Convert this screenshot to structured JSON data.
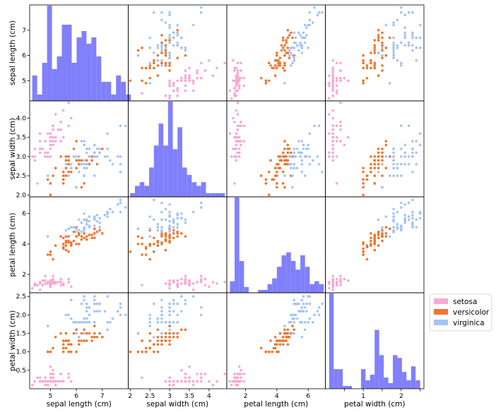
{
  "chart_data": {
    "type": "scatter-matrix",
    "title": "",
    "features": [
      {
        "key": "sl",
        "label": "sepal length (cm)",
        "range": [
          4.2,
          8.0
        ],
        "ticks": [
          5,
          6,
          7
        ],
        "bins": [
          [
            4.3,
            4.49,
            4
          ],
          [
            4.49,
            4.68,
            1
          ],
          [
            4.68,
            4.87,
            6
          ],
          [
            4.87,
            5.06,
            15
          ],
          [
            5.06,
            5.25,
            5
          ],
          [
            5.25,
            5.44,
            7
          ],
          [
            5.44,
            5.63,
            12
          ],
          [
            5.63,
            5.82,
            12
          ],
          [
            5.82,
            6.01,
            6
          ],
          [
            6.01,
            6.2,
            10
          ],
          [
            6.2,
            6.39,
            11
          ],
          [
            6.39,
            6.58,
            9
          ],
          [
            6.58,
            6.77,
            10
          ],
          [
            6.77,
            6.96,
            7
          ],
          [
            6.96,
            7.15,
            3
          ],
          [
            7.15,
            7.34,
            3
          ],
          [
            7.34,
            7.53,
            1
          ],
          [
            7.53,
            7.72,
            4
          ],
          [
            7.72,
            7.91,
            3
          ],
          [
            7.91,
            8.1,
            1
          ]
        ]
      },
      {
        "key": "sw",
        "label": "sepal width (cm)",
        "range": [
          1.95,
          4.45
        ],
        "ticks": [
          2.0,
          2.5,
          3.0,
          3.5,
          4.0
        ],
        "bins": [
          [
            2.0,
            2.12,
            1
          ],
          [
            2.12,
            2.24,
            3
          ],
          [
            2.24,
            2.36,
            4
          ],
          [
            2.36,
            2.48,
            3
          ],
          [
            2.48,
            2.6,
            8
          ],
          [
            2.6,
            2.72,
            14
          ],
          [
            2.72,
            2.84,
            20
          ],
          [
            2.84,
            2.96,
            14
          ],
          [
            2.96,
            3.08,
            26
          ],
          [
            3.08,
            3.2,
            13
          ],
          [
            3.2,
            3.32,
            19
          ],
          [
            3.32,
            3.44,
            8
          ],
          [
            3.44,
            3.56,
            6
          ],
          [
            3.56,
            3.68,
            4
          ],
          [
            3.68,
            3.8,
            3
          ],
          [
            3.8,
            3.92,
            4
          ],
          [
            3.92,
            4.04,
            1
          ],
          [
            4.04,
            4.16,
            1
          ],
          [
            4.16,
            4.28,
            1
          ],
          [
            4.28,
            4.4,
            1
          ]
        ]
      },
      {
        "key": "pl",
        "label": "petal length (cm)",
        "range": [
          0.8,
          7.1
        ],
        "ticks": [
          2,
          4,
          6
        ],
        "bins": [
          [
            1.0,
            1.3,
            4
          ],
          [
            1.3,
            1.6,
            33
          ],
          [
            1.6,
            1.9,
            11
          ],
          [
            1.9,
            2.2,
            2
          ],
          [
            2.2,
            2.5,
            0
          ],
          [
            2.5,
            2.8,
            0
          ],
          [
            2.8,
            3.1,
            1
          ],
          [
            3.1,
            3.4,
            1
          ],
          [
            3.4,
            3.7,
            3
          ],
          [
            3.7,
            4.0,
            5
          ],
          [
            4.0,
            4.3,
            9
          ],
          [
            4.3,
            4.6,
            13
          ],
          [
            4.6,
            4.9,
            14
          ],
          [
            4.9,
            5.2,
            11
          ],
          [
            5.2,
            5.5,
            8
          ],
          [
            5.5,
            5.8,
            13
          ],
          [
            5.8,
            6.1,
            9
          ],
          [
            6.1,
            6.4,
            3
          ],
          [
            6.4,
            6.7,
            4
          ],
          [
            6.7,
            7.0,
            3
          ]
        ]
      },
      {
        "key": "pw",
        "label": "petal width (cm)",
        "range": [
          0.0,
          2.6
        ],
        "ticks": [
          0.5,
          1.0,
          1.5,
          2.0,
          2.5
        ],
        "labeled_ticks": [
          1,
          2
        ],
        "bins": [
          [
            0.1,
            0.22,
            34
          ],
          [
            0.22,
            0.34,
            7
          ],
          [
            0.34,
            0.46,
            7
          ],
          [
            0.46,
            0.58,
            1
          ],
          [
            0.58,
            0.7,
            1
          ],
          [
            0.7,
            0.82,
            0
          ],
          [
            0.82,
            0.94,
            0
          ],
          [
            0.94,
            1.06,
            7
          ],
          [
            1.06,
            1.18,
            3
          ],
          [
            1.18,
            1.3,
            5
          ],
          [
            1.3,
            1.42,
            21
          ],
          [
            1.42,
            1.54,
            12
          ],
          [
            1.54,
            1.66,
            4
          ],
          [
            1.66,
            1.78,
            2
          ],
          [
            1.78,
            1.9,
            12
          ],
          [
            1.9,
            2.02,
            11
          ],
          [
            2.02,
            2.14,
            6
          ],
          [
            2.14,
            2.26,
            3
          ],
          [
            2.26,
            2.38,
            8
          ],
          [
            2.38,
            2.5,
            3
          ]
        ]
      }
    ],
    "legend": {
      "placement": "right",
      "entries": [
        {
          "name": "setosa",
          "color": "#f7a8d3"
        },
        {
          "name": "versicolor",
          "color": "#ee7630"
        },
        {
          "name": "virginica",
          "color": "#a5c4f3"
        }
      ]
    },
    "hist_color": "#8080fc",
    "grid": false,
    "points": {
      "setosa": [
        [
          5.1,
          3.5,
          1.4,
          0.2
        ],
        [
          4.9,
          3.0,
          1.4,
          0.2
        ],
        [
          4.7,
          3.2,
          1.3,
          0.2
        ],
        [
          4.6,
          3.1,
          1.5,
          0.2
        ],
        [
          5.0,
          3.6,
          1.4,
          0.2
        ],
        [
          5.4,
          3.9,
          1.7,
          0.4
        ],
        [
          4.6,
          3.4,
          1.4,
          0.3
        ],
        [
          5.0,
          3.4,
          1.5,
          0.2
        ],
        [
          4.4,
          2.9,
          1.4,
          0.2
        ],
        [
          4.9,
          3.1,
          1.5,
          0.1
        ],
        [
          5.4,
          3.7,
          1.5,
          0.2
        ],
        [
          4.8,
          3.4,
          1.6,
          0.2
        ],
        [
          4.8,
          3.0,
          1.4,
          0.1
        ],
        [
          4.3,
          3.0,
          1.1,
          0.1
        ],
        [
          5.8,
          4.0,
          1.2,
          0.2
        ],
        [
          5.7,
          4.4,
          1.5,
          0.4
        ],
        [
          5.4,
          3.9,
          1.3,
          0.4
        ],
        [
          5.1,
          3.5,
          1.4,
          0.3
        ],
        [
          5.7,
          3.8,
          1.7,
          0.3
        ],
        [
          5.1,
          3.8,
          1.5,
          0.3
        ],
        [
          5.4,
          3.4,
          1.7,
          0.2
        ],
        [
          5.1,
          3.7,
          1.5,
          0.4
        ],
        [
          4.6,
          3.6,
          1.0,
          0.2
        ],
        [
          5.1,
          3.3,
          1.7,
          0.5
        ],
        [
          4.8,
          3.4,
          1.9,
          0.2
        ],
        [
          5.0,
          3.0,
          1.6,
          0.2
        ],
        [
          5.0,
          3.4,
          1.6,
          0.4
        ],
        [
          5.2,
          3.5,
          1.5,
          0.2
        ],
        [
          5.2,
          3.4,
          1.4,
          0.2
        ],
        [
          4.7,
          3.2,
          1.6,
          0.2
        ],
        [
          4.8,
          3.1,
          1.6,
          0.2
        ],
        [
          5.4,
          3.4,
          1.5,
          0.4
        ],
        [
          5.2,
          4.1,
          1.5,
          0.1
        ],
        [
          5.5,
          4.2,
          1.4,
          0.2
        ],
        [
          4.9,
          3.1,
          1.5,
          0.2
        ],
        [
          5.0,
          3.2,
          1.2,
          0.2
        ],
        [
          5.5,
          3.5,
          1.3,
          0.2
        ],
        [
          4.9,
          3.6,
          1.4,
          0.1
        ],
        [
          4.4,
          3.0,
          1.3,
          0.2
        ],
        [
          5.1,
          3.4,
          1.5,
          0.2
        ],
        [
          5.0,
          3.5,
          1.3,
          0.3
        ],
        [
          4.5,
          2.3,
          1.3,
          0.3
        ],
        [
          4.4,
          3.2,
          1.3,
          0.2
        ],
        [
          5.0,
          3.5,
          1.6,
          0.6
        ],
        [
          5.1,
          3.8,
          1.9,
          0.4
        ],
        [
          4.8,
          3.0,
          1.4,
          0.3
        ],
        [
          5.1,
          3.8,
          1.6,
          0.2
        ],
        [
          4.6,
          3.2,
          1.4,
          0.2
        ],
        [
          5.3,
          3.7,
          1.5,
          0.2
        ],
        [
          5.0,
          3.3,
          1.4,
          0.2
        ]
      ],
      "versicolor": [
        [
          7.0,
          3.2,
          4.7,
          1.4
        ],
        [
          6.4,
          3.2,
          4.5,
          1.5
        ],
        [
          6.9,
          3.1,
          4.9,
          1.5
        ],
        [
          5.5,
          2.3,
          4.0,
          1.3
        ],
        [
          6.5,
          2.8,
          4.6,
          1.5
        ],
        [
          5.7,
          2.8,
          4.5,
          1.3
        ],
        [
          6.3,
          3.3,
          4.7,
          1.6
        ],
        [
          4.9,
          2.4,
          3.3,
          1.0
        ],
        [
          6.6,
          2.9,
          4.6,
          1.3
        ],
        [
          5.2,
          2.7,
          3.9,
          1.4
        ],
        [
          5.0,
          2.0,
          3.5,
          1.0
        ],
        [
          5.9,
          3.0,
          4.2,
          1.5
        ],
        [
          6.0,
          2.2,
          4.0,
          1.0
        ],
        [
          6.1,
          2.9,
          4.7,
          1.4
        ],
        [
          5.6,
          2.9,
          3.6,
          1.3
        ],
        [
          6.7,
          3.1,
          4.4,
          1.4
        ],
        [
          5.6,
          3.0,
          4.5,
          1.5
        ],
        [
          5.8,
          2.7,
          4.1,
          1.0
        ],
        [
          6.2,
          2.2,
          4.5,
          1.5
        ],
        [
          5.6,
          2.5,
          3.9,
          1.1
        ],
        [
          5.9,
          3.2,
          4.8,
          1.8
        ],
        [
          6.1,
          2.8,
          4.0,
          1.3
        ],
        [
          6.3,
          2.5,
          4.9,
          1.5
        ],
        [
          6.1,
          2.8,
          4.7,
          1.2
        ],
        [
          6.4,
          2.9,
          4.3,
          1.3
        ],
        [
          6.6,
          3.0,
          4.4,
          1.4
        ],
        [
          6.8,
          2.8,
          4.8,
          1.4
        ],
        [
          6.7,
          3.0,
          5.0,
          1.7
        ],
        [
          6.0,
          2.9,
          4.5,
          1.5
        ],
        [
          5.7,
          2.6,
          3.5,
          1.0
        ],
        [
          5.5,
          2.4,
          3.8,
          1.1
        ],
        [
          5.5,
          2.4,
          3.7,
          1.0
        ],
        [
          5.8,
          2.7,
          3.9,
          1.2
        ],
        [
          6.0,
          2.7,
          5.1,
          1.6
        ],
        [
          5.4,
          3.0,
          4.5,
          1.5
        ],
        [
          6.0,
          3.4,
          4.5,
          1.6
        ],
        [
          6.7,
          3.1,
          4.7,
          1.5
        ],
        [
          6.3,
          2.3,
          4.4,
          1.3
        ],
        [
          5.6,
          3.0,
          4.1,
          1.3
        ],
        [
          5.5,
          2.5,
          4.0,
          1.3
        ],
        [
          5.5,
          2.6,
          4.4,
          1.2
        ],
        [
          6.1,
          3.0,
          4.6,
          1.4
        ],
        [
          5.8,
          2.6,
          4.0,
          1.2
        ],
        [
          5.0,
          2.3,
          3.3,
          1.0
        ],
        [
          5.6,
          2.7,
          4.2,
          1.3
        ],
        [
          5.7,
          3.0,
          4.2,
          1.2
        ],
        [
          5.7,
          2.9,
          4.2,
          1.3
        ],
        [
          6.2,
          2.9,
          4.3,
          1.3
        ],
        [
          5.1,
          2.5,
          3.0,
          1.1
        ],
        [
          5.7,
          2.8,
          4.1,
          1.3
        ]
      ],
      "virginica": [
        [
          6.3,
          3.3,
          6.0,
          2.5
        ],
        [
          5.8,
          2.7,
          5.1,
          1.9
        ],
        [
          7.1,
          3.0,
          5.9,
          2.1
        ],
        [
          6.3,
          2.9,
          5.6,
          1.8
        ],
        [
          6.5,
          3.0,
          5.8,
          2.2
        ],
        [
          7.6,
          3.0,
          6.6,
          2.1
        ],
        [
          4.9,
          2.5,
          4.5,
          1.7
        ],
        [
          7.3,
          2.9,
          6.3,
          1.8
        ],
        [
          6.7,
          2.5,
          5.8,
          1.8
        ],
        [
          7.2,
          3.6,
          6.1,
          2.5
        ],
        [
          6.5,
          3.2,
          5.1,
          2.0
        ],
        [
          6.4,
          2.7,
          5.3,
          1.9
        ],
        [
          6.8,
          3.0,
          5.5,
          2.1
        ],
        [
          5.7,
          2.5,
          5.0,
          2.0
        ],
        [
          5.8,
          2.8,
          5.1,
          2.4
        ],
        [
          6.4,
          3.2,
          5.3,
          2.3
        ],
        [
          6.5,
          3.0,
          5.5,
          1.8
        ],
        [
          7.7,
          3.8,
          6.7,
          2.2
        ],
        [
          7.7,
          2.6,
          6.9,
          2.3
        ],
        [
          6.0,
          2.2,
          5.0,
          1.5
        ],
        [
          6.9,
          3.2,
          5.7,
          2.3
        ],
        [
          5.6,
          2.8,
          4.9,
          2.0
        ],
        [
          7.7,
          2.8,
          6.7,
          2.0
        ],
        [
          6.3,
          2.7,
          4.9,
          1.8
        ],
        [
          6.7,
          3.3,
          5.7,
          2.1
        ],
        [
          7.2,
          3.2,
          6.0,
          1.8
        ],
        [
          6.2,
          2.8,
          4.8,
          1.8
        ],
        [
          6.1,
          3.0,
          4.9,
          1.8
        ],
        [
          6.4,
          2.8,
          5.6,
          2.1
        ],
        [
          7.2,
          3.0,
          5.8,
          1.6
        ],
        [
          7.4,
          2.8,
          6.1,
          1.9
        ],
        [
          7.9,
          3.8,
          6.4,
          2.0
        ],
        [
          6.4,
          2.8,
          5.6,
          2.2
        ],
        [
          6.3,
          2.8,
          5.1,
          1.5
        ],
        [
          6.1,
          2.6,
          5.6,
          1.4
        ],
        [
          7.7,
          3.0,
          6.1,
          2.3
        ],
        [
          6.3,
          3.4,
          5.6,
          2.4
        ],
        [
          6.4,
          3.1,
          5.5,
          1.8
        ],
        [
          6.0,
          3.0,
          4.8,
          1.8
        ],
        [
          6.9,
          3.1,
          5.4,
          2.1
        ],
        [
          6.7,
          3.1,
          5.6,
          2.4
        ],
        [
          6.9,
          3.1,
          5.1,
          2.3
        ],
        [
          5.8,
          2.7,
          5.1,
          1.9
        ],
        [
          6.8,
          3.2,
          5.9,
          2.3
        ],
        [
          6.7,
          3.3,
          5.7,
          2.5
        ],
        [
          6.7,
          3.0,
          5.2,
          2.3
        ],
        [
          6.3,
          2.5,
          5.0,
          1.9
        ],
        [
          6.5,
          3.0,
          5.2,
          2.0
        ],
        [
          6.2,
          3.4,
          5.4,
          2.3
        ],
        [
          5.9,
          3.0,
          5.1,
          1.8
        ]
      ]
    }
  }
}
